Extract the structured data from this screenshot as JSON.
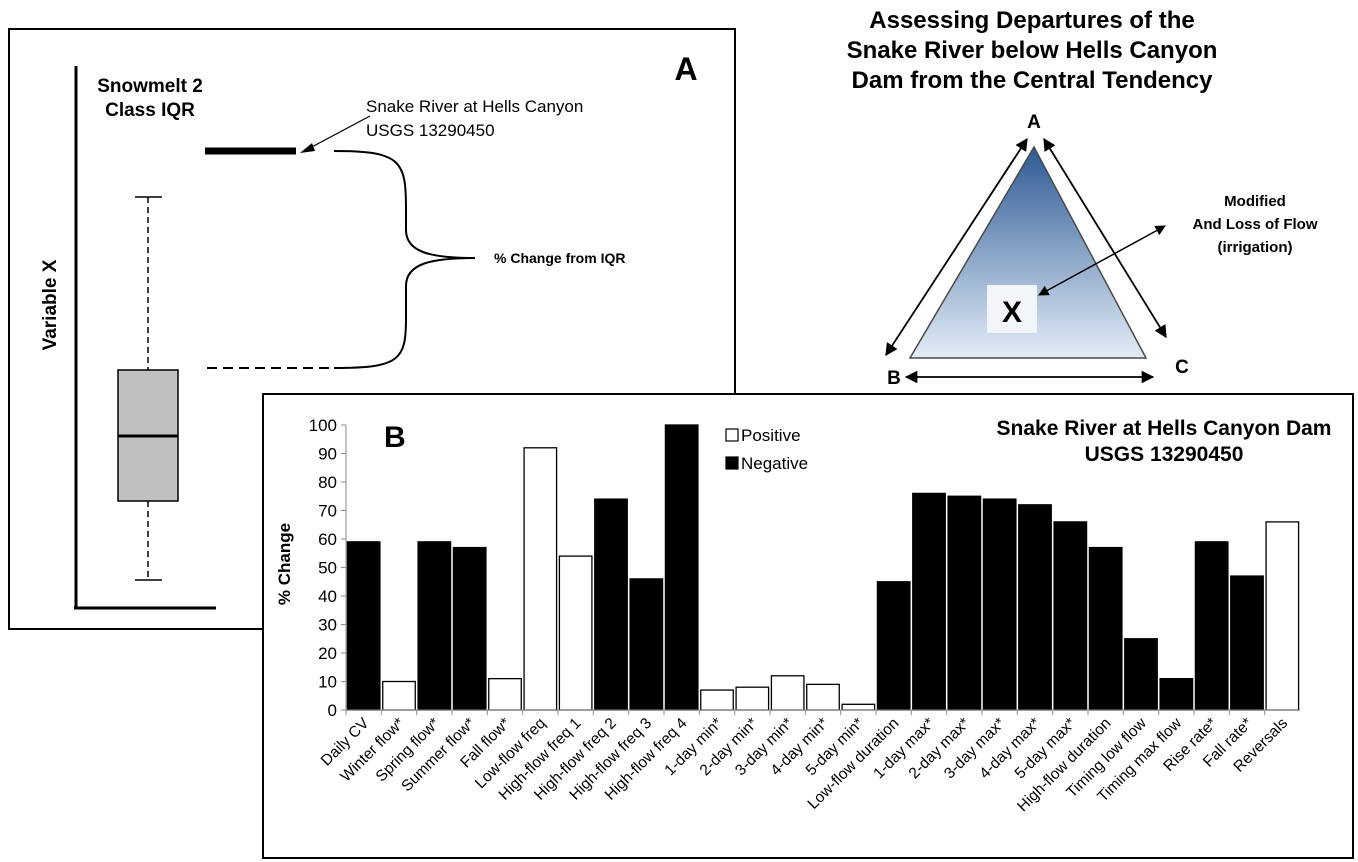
{
  "panel_a": {
    "letter": "A",
    "title_line1": "Snowmelt 2",
    "title_line2": "Class IQR",
    "y_axis_label": "Variable X",
    "annotation_line1": "Snake River at Hells Canyon",
    "annotation_line2": "USGS 13290450",
    "brace_label": "% Change from IQR"
  },
  "panel_c": {
    "title_line1": "Assessing Departures of the",
    "title_line2": "Snake River below Hells Canyon",
    "title_line3": "Dam from the Central Tendency",
    "vertex_a": "A",
    "vertex_b": "B",
    "vertex_c": "C",
    "marker": "X",
    "note_line1": "Modified",
    "note_line2": "And Loss of Flow",
    "note_line3": "(irrigation)",
    "colors": {
      "fill_top": "#2e5a94",
      "fill_bottom": "#e3edf8"
    }
  },
  "chart_data": {
    "type": "bar",
    "letter": "B",
    "title": "Snake River at Hells Canyon Dam",
    "subtitle": "USGS 13290450",
    "ylabel": "% Change",
    "ylim": [
      0,
      100
    ],
    "yticks": [
      0,
      10,
      20,
      30,
      40,
      50,
      60,
      70,
      80,
      90,
      100
    ],
    "legend": [
      {
        "name": "Positive",
        "color": "#ffffff"
      },
      {
        "name": "Negative",
        "color": "#000000"
      }
    ],
    "categories": [
      "Daily CV",
      "Winter flow*",
      "Spring flow*",
      "Summer flow*",
      "Fall flow*",
      "Low-flow freq",
      "High-flow freq 1",
      "High-flow freq 2",
      "High-flow freq 3",
      "High-flow freq 4",
      "1-day min*",
      "2-day min*",
      "3-day min*",
      "4-day min*",
      "5-day min*",
      "Low-flow duration",
      "1-day max*",
      "2-day max*",
      "3-day max*",
      "4-day max*",
      "5-day max*",
      "High-flow duration",
      "Timing low flow",
      "Timing max flow",
      "Rise rate*",
      "Fall rate*",
      "Reversals"
    ],
    "values": [
      59,
      10,
      59,
      57,
      11,
      92,
      54,
      74,
      46,
      100,
      7,
      8,
      12,
      9,
      2,
      45,
      76,
      75,
      74,
      72,
      66,
      57,
      25,
      11,
      59,
      47,
      66
    ],
    "signs": [
      "Negative",
      "Positive",
      "Negative",
      "Negative",
      "Positive",
      "Positive",
      "Positive",
      "Negative",
      "Negative",
      "Negative",
      "Positive",
      "Positive",
      "Positive",
      "Positive",
      "Positive",
      "Negative",
      "Negative",
      "Negative",
      "Negative",
      "Negative",
      "Negative",
      "Negative",
      "Negative",
      "Negative",
      "Negative",
      "Negative",
      "Positive"
    ]
  }
}
